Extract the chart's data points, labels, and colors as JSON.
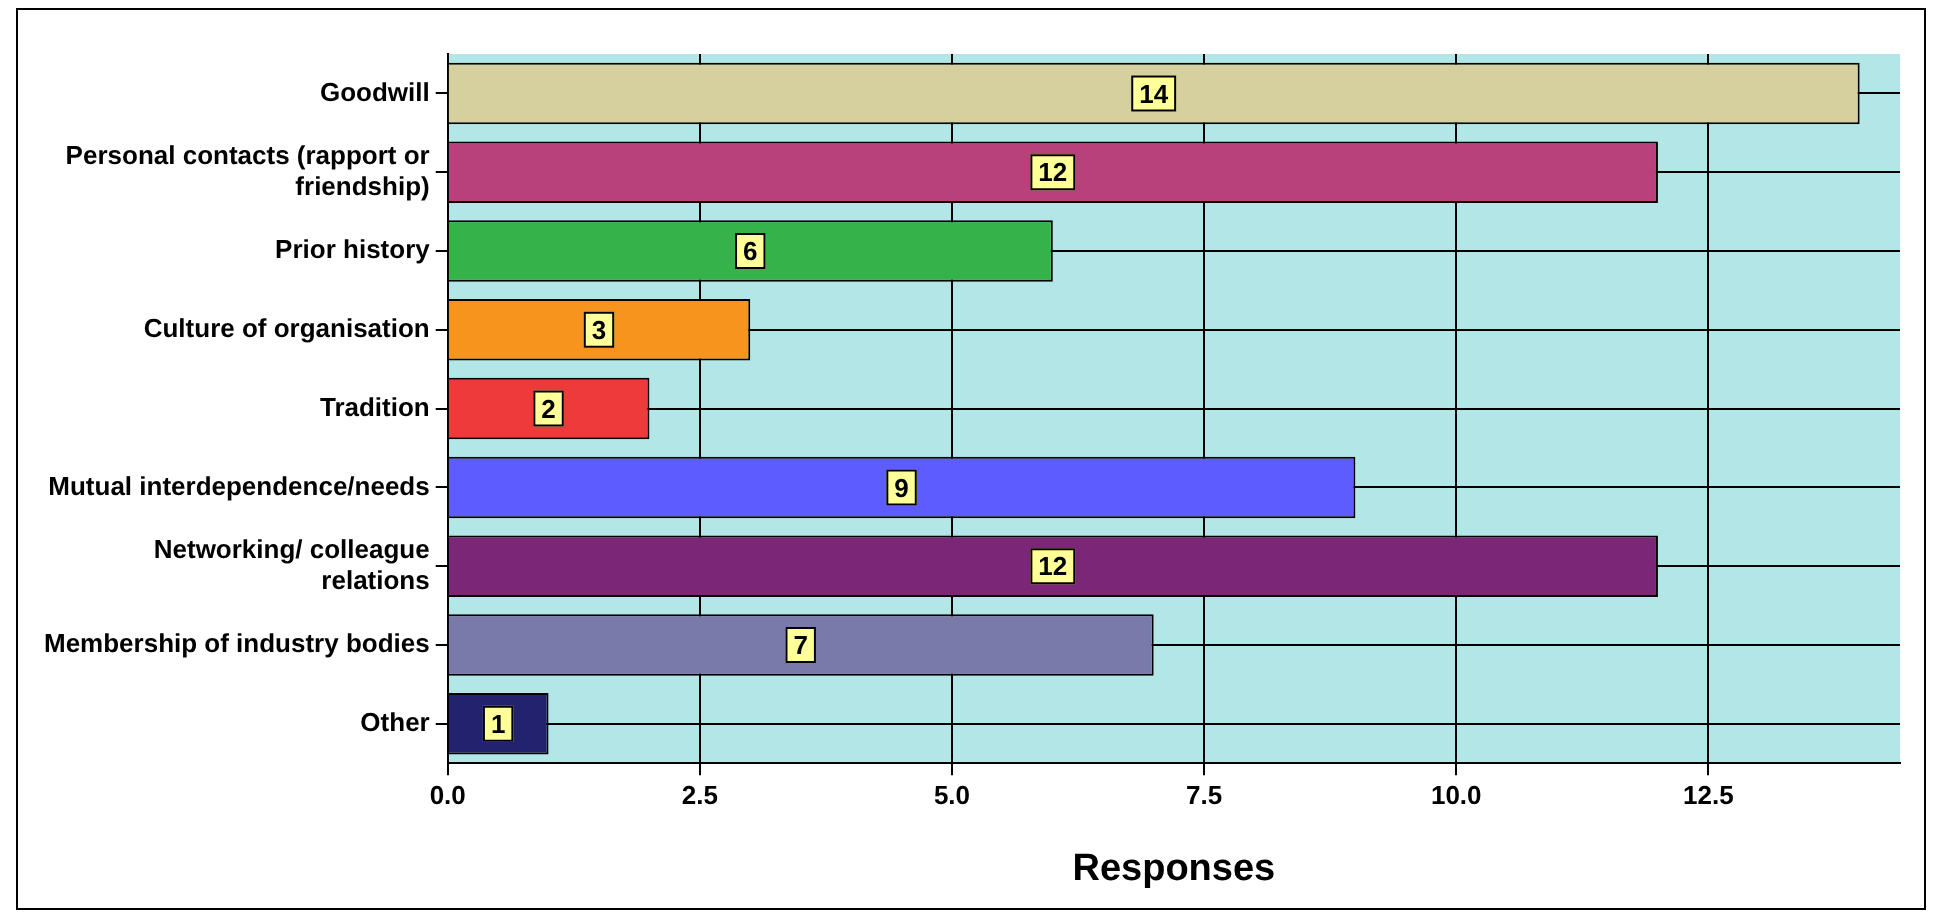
{
  "chart_data": {
    "type": "bar",
    "orientation": "horizontal",
    "xlabel": "Responses",
    "categories": [
      "Goodwill",
      "Personal contacts (rapport or friendship)",
      "Prior history",
      "Culture of organisation",
      "Tradition",
      "Mutual interdependence/needs",
      "Networking/ colleague relations",
      "Membership of industry bodies",
      "Other"
    ],
    "values": [
      14,
      12,
      6,
      3,
      2,
      9,
      12,
      7,
      1
    ],
    "colors": [
      "#d6cf9e",
      "#b8417c",
      "#35b34a",
      "#f7941d",
      "#ee3a3a",
      "#5c5cff",
      "#7b2677",
      "#7a7aaa",
      "#22226f"
    ],
    "xlim": [
      0,
      14.4
    ],
    "xticks": [
      {
        "value": 0,
        "label": "0.0"
      },
      {
        "value": 2.5,
        "label": "2.5"
      },
      {
        "value": 5,
        "label": "5.0"
      },
      {
        "value": 7.5,
        "label": "7.5"
      },
      {
        "value": 10,
        "label": "10.0"
      },
      {
        "value": 12.5,
        "label": "12.5"
      }
    ],
    "grid": true,
    "data_labels": true
  }
}
